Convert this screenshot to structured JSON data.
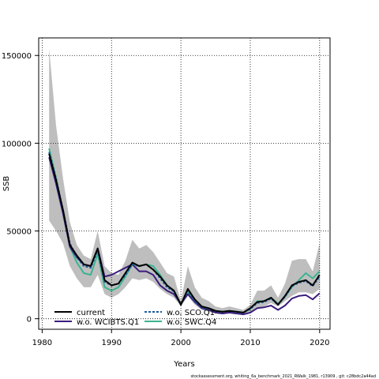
{
  "chart_data": {
    "type": "line",
    "xlabel": "Years",
    "ylabel": "SSB",
    "xlim": [
      1979.5,
      2021.5
    ],
    "ylim": [
      -6000,
      160000
    ],
    "xticks": [
      1980,
      1990,
      2000,
      2010,
      2020
    ],
    "yticks": [
      0,
      50000,
      100000,
      150000
    ],
    "ytick_labels": [
      "0",
      "50000",
      "100000",
      "150000"
    ],
    "grid": "dotted",
    "legend_placement": "bottom-left",
    "x": [
      1981,
      1982,
      1983,
      1984,
      1985,
      1986,
      1987,
      1988,
      1989,
      1990,
      1991,
      1992,
      1993,
      1994,
      1995,
      1996,
      1997,
      1998,
      1999,
      2000,
      2001,
      2002,
      2003,
      2004,
      2005,
      2006,
      2007,
      2008,
      2009,
      2010,
      2011,
      2012,
      2013,
      2014,
      2015,
      2016,
      2017,
      2018,
      2019,
      2020
    ],
    "band": {
      "lower": [
        56000,
        50000,
        43000,
        30000,
        23000,
        18000,
        18000,
        25000,
        14000,
        12000,
        14000,
        18000,
        23000,
        22000,
        23000,
        21000,
        17000,
        14000,
        12000,
        7000,
        13000,
        8000,
        5000,
        4000,
        3000,
        2500,
        3000,
        2500,
        2500,
        4000,
        6000,
        7000,
        9000,
        7000,
        10000,
        13000,
        15000,
        15000,
        14000,
        17000
      ],
      "upper": [
        154000,
        110000,
        80000,
        55000,
        42000,
        36000,
        34000,
        50000,
        30000,
        26000,
        25000,
        33000,
        45000,
        40000,
        42000,
        38000,
        32000,
        26000,
        24000,
        10000,
        30000,
        18000,
        12000,
        10000,
        7000,
        6000,
        7000,
        6000,
        5000,
        8000,
        16000,
        16000,
        19000,
        12000,
        20000,
        33000,
        34000,
        34000,
        27000,
        43000
      ]
    },
    "series": [
      {
        "name": "current",
        "color": "#000000",
        "dash": "solid",
        "values": [
          94000,
          79000,
          62000,
          42000,
          36000,
          31000,
          30000,
          40000,
          22000,
          19000,
          20000,
          26000,
          32000,
          30000,
          31000,
          28000,
          24000,
          19000,
          16000,
          8000,
          17000,
          11000,
          7000,
          6000,
          4500,
          4000,
          4500,
          4000,
          3500,
          6000,
          9500,
          10000,
          12000,
          8000,
          13000,
          19000,
          21000,
          22000,
          19000,
          25000
        ]
      },
      {
        "name": "w.o. WCIBTS.Q1",
        "color": "#3b1d7c",
        "dash": "solid",
        "values": [
          92000,
          77000,
          60000,
          41000,
          35000,
          31000,
          30000,
          40000,
          24000,
          25000,
          27000,
          29000,
          31000,
          27000,
          27000,
          25000,
          19000,
          16000,
          14000,
          8500,
          14000,
          9500,
          6000,
          5000,
          3500,
          3000,
          3500,
          3000,
          2500,
          3500,
          6000,
          6500,
          7500,
          5000,
          7500,
          11500,
          13000,
          13500,
          11000,
          14500
        ]
      },
      {
        "name": "w.o. SCO.Q1",
        "color": "#1c5a9e",
        "dash": "dashed",
        "values": [
          95000,
          80000,
          62000,
          43000,
          35000,
          30000,
          29000,
          39000,
          21000,
          19000,
          20000,
          25000,
          31000,
          30000,
          31000,
          28000,
          23000,
          18000,
          15500,
          8000,
          16000,
          10000,
          6500,
          5500,
          4500,
          3800,
          4500,
          3800,
          3500,
          5500,
          9000,
          9500,
          11500,
          8000,
          12500,
          18500,
          20500,
          21500,
          18500,
          24000
        ]
      },
      {
        "name": "w.o. SWC.Q4",
        "color": "#3cb391",
        "dash": "solid",
        "values": [
          97000,
          80000,
          61000,
          41000,
          32000,
          26000,
          25000,
          37000,
          18000,
          16000,
          18000,
          24000,
          31000,
          30000,
          31000,
          30000,
          25000,
          19000,
          15500,
          8000,
          15500,
          10000,
          6500,
          6000,
          4500,
          4000,
          4500,
          4000,
          3500,
          5500,
          10000,
          10000,
          12000,
          8500,
          12500,
          18000,
          22000,
          26000,
          23000,
          27000
        ]
      }
    ]
  },
  "footer": "stockassessment.org, whiting_6a_benchmark_2021_RWalk_1981, r13909 , git: c28bdc2a44ad"
}
